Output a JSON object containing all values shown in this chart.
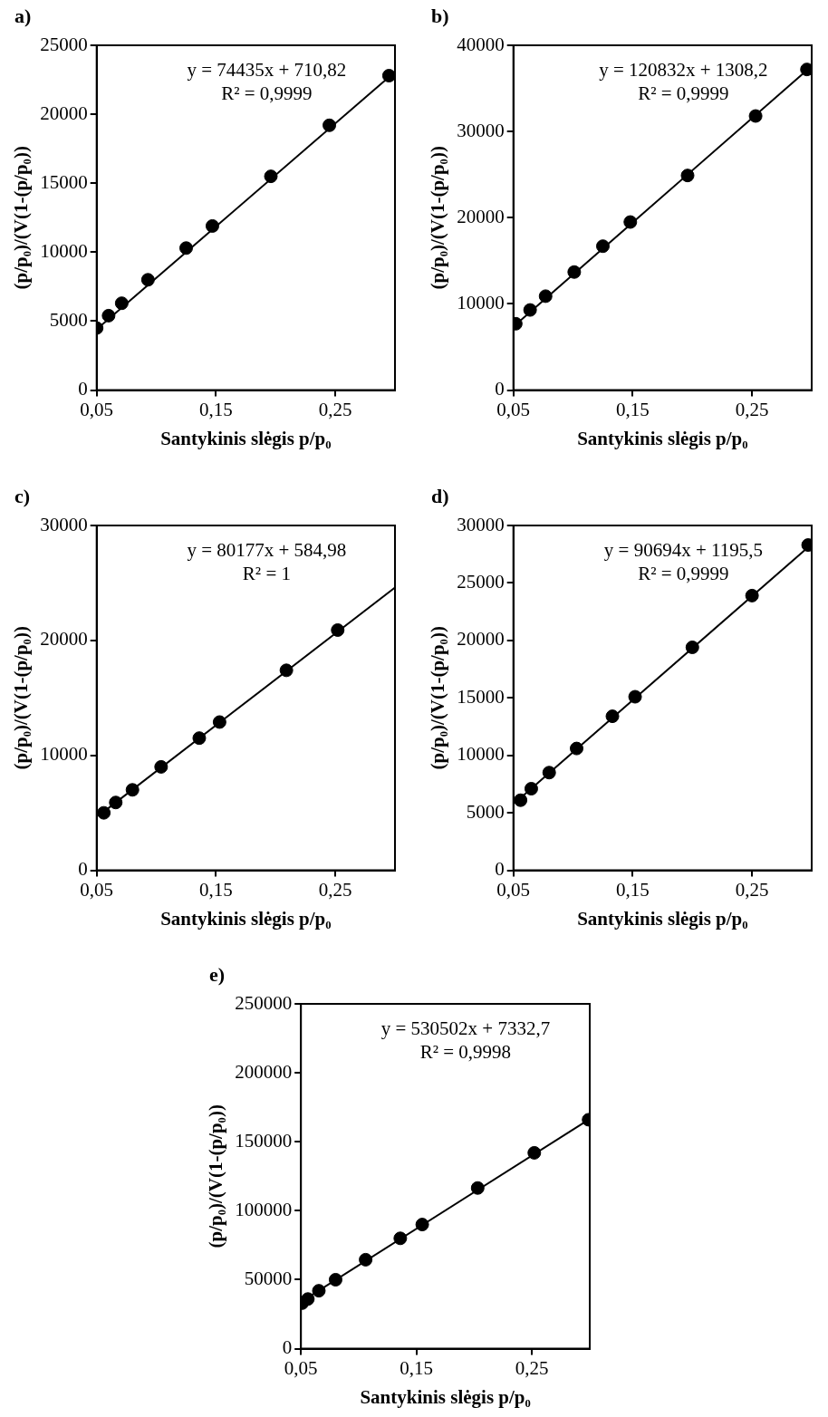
{
  "chart_data": [
    {
      "type": "scatter",
      "title": "a)",
      "xlabel": "Santykinis slėgis p/p₀",
      "ylabel": "(p/p₀)/(V(1-(p/p₀))",
      "annotations": [
        "y = 74435x + 710,82",
        "R² = 0,9999"
      ],
      "xlim": [
        0.05,
        0.3
      ],
      "xticks": [
        {
          "value": 0.05,
          "label": "0,05"
        },
        {
          "value": 0.15,
          "label": "0,15"
        },
        {
          "value": 0.25,
          "label": "0,25"
        }
      ],
      "ylim": [
        0,
        25000
      ],
      "yticks": [
        0,
        5000,
        10000,
        15000,
        20000,
        25000
      ],
      "grid": false,
      "legend": false,
      "series": [
        {
          "color": "#000000",
          "marker": "circle",
          "x": [
            0.05,
            0.06,
            0.071,
            0.093,
            0.125,
            0.147,
            0.196,
            0.245,
            0.295
          ],
          "values": [
            4500,
            5400,
            6300,
            8000,
            10300,
            11900,
            15500,
            19200,
            22800
          ]
        },
        {
          "type": "line",
          "color": "#000000",
          "marker": "none",
          "x": [
            0.05,
            0.295
          ],
          "values": [
            4400,
            22700
          ]
        }
      ]
    },
    {
      "type": "scatter",
      "title": "b)",
      "xlabel": "Santykinis slėgis p/p₀",
      "ylabel": "(p/p₀)/(V(1-(p/p₀))",
      "annotations": [
        "y = 120832x + 1308,2",
        "R² = 0,9999"
      ],
      "xlim": [
        0.05,
        0.3
      ],
      "xticks": [
        {
          "value": 0.05,
          "label": "0,05"
        },
        {
          "value": 0.15,
          "label": "0,15"
        },
        {
          "value": 0.25,
          "label": "0,25"
        }
      ],
      "ylim": [
        0,
        40000
      ],
      "yticks": [
        0,
        10000,
        20000,
        30000,
        40000
      ],
      "grid": false,
      "legend": false,
      "series": [
        {
          "color": "#000000",
          "marker": "circle",
          "x": [
            0.052,
            0.064,
            0.077,
            0.101,
            0.125,
            0.148,
            0.196,
            0.253,
            0.296
          ],
          "values": [
            7700,
            9300,
            10900,
            13700,
            16700,
            19500,
            24900,
            31800,
            37200
          ]
        },
        {
          "type": "line",
          "color": "#000000",
          "marker": "none",
          "x": [
            0.052,
            0.296
          ],
          "values": [
            7600,
            37100
          ]
        }
      ]
    },
    {
      "type": "scatter",
      "title": "c)",
      "xlabel": "Santykinis slėgis p/p₀",
      "ylabel": "(p/p₀)/(V(1-(p/p₀))",
      "annotations": [
        "y = 80177x + 584,98",
        "R² = 1"
      ],
      "xlim": [
        0.05,
        0.3
      ],
      "xticks": [
        {
          "value": 0.05,
          "label": "0,05"
        },
        {
          "value": 0.15,
          "label": "0,15"
        },
        {
          "value": 0.25,
          "label": "0,25"
        }
      ],
      "ylim": [
        0,
        30000
      ],
      "yticks": [
        0,
        10000,
        20000,
        30000
      ],
      "grid": false,
      "legend": false,
      "series": [
        {
          "color": "#000000",
          "marker": "circle",
          "x": [
            0.056,
            0.066,
            0.08,
            0.104,
            0.136,
            0.153,
            0.209,
            0.252
          ],
          "values": [
            5000,
            5900,
            7000,
            9000,
            11500,
            12900,
            17400,
            20900
          ]
        },
        {
          "type": "line",
          "color": "#000000",
          "marker": "none",
          "x": [
            0.056,
            0.3
          ],
          "values": [
            5100,
            24600
          ]
        }
      ]
    },
    {
      "type": "scatter",
      "title": "d)",
      "xlabel": "Santykinis slėgis p/p₀",
      "ylabel": "(p/p₀)/(V(1-(p/p₀))",
      "annotations": [
        "y = 90694x + 1195,5",
        "R² = 0,9999"
      ],
      "xlim": [
        0.05,
        0.3
      ],
      "xticks": [
        {
          "value": 0.05,
          "label": "0,05"
        },
        {
          "value": 0.15,
          "label": "0,15"
        },
        {
          "value": 0.25,
          "label": "0,25"
        }
      ],
      "ylim": [
        0,
        30000
      ],
      "yticks": [
        0,
        5000,
        10000,
        15000,
        20000,
        25000,
        30000
      ],
      "grid": false,
      "legend": false,
      "series": [
        {
          "color": "#000000",
          "marker": "circle",
          "x": [
            0.056,
            0.065,
            0.08,
            0.103,
            0.133,
            0.152,
            0.2,
            0.25,
            0.297
          ],
          "values": [
            6100,
            7100,
            8500,
            10600,
            13400,
            15100,
            19400,
            23900,
            28300
          ]
        },
        {
          "type": "line",
          "color": "#000000",
          "marker": "none",
          "x": [
            0.056,
            0.297
          ],
          "values": [
            6300,
            28100
          ]
        }
      ]
    },
    {
      "type": "scatter",
      "title": "e)",
      "xlabel": "Santykinis slėgis p/p₀",
      "ylabel": "(p/p₀)/(V(1-(p/p₀))",
      "annotations": [
        "y = 530502x + 7332,7",
        "R² = 0,9998"
      ],
      "xlim": [
        0.05,
        0.3
      ],
      "xticks": [
        {
          "value": 0.05,
          "label": "0,05"
        },
        {
          "value": 0.15,
          "label": "0,15"
        },
        {
          "value": 0.25,
          "label": "0,25"
        }
      ],
      "ylim": [
        0,
        250000
      ],
      "yticks": [
        0,
        50000,
        100000,
        150000,
        200000,
        250000
      ],
      "grid": false,
      "legend": false,
      "series": [
        {
          "color": "#000000",
          "marker": "circle",
          "x": [
            0.051,
            0.056,
            0.0655,
            0.08,
            0.106,
            0.136,
            0.155,
            0.203,
            0.252,
            0.299
          ],
          "values": [
            33000,
            36000,
            42000,
            50000,
            64500,
            80000,
            90000,
            116500,
            142000,
            166000
          ]
        },
        {
          "type": "line",
          "color": "#000000",
          "marker": "none",
          "x": [
            0.051,
            0.299
          ],
          "values": [
            34500,
            166000
          ]
        }
      ]
    }
  ]
}
